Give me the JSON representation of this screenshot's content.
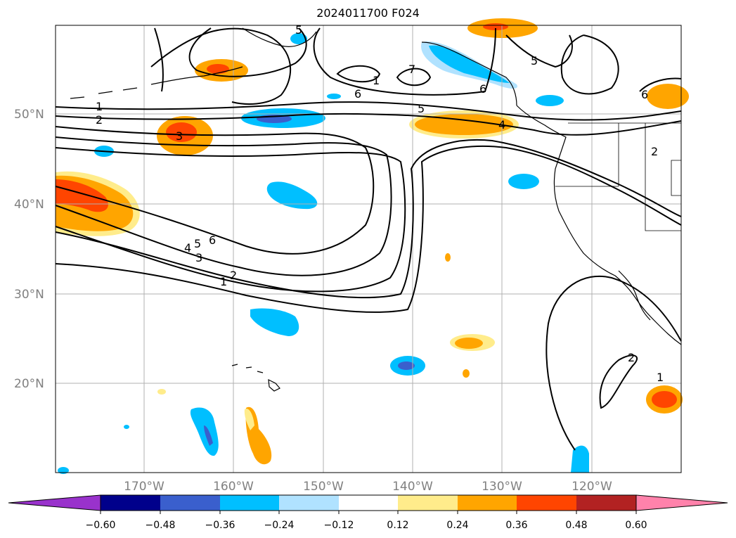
{
  "title": "2024011700 F024",
  "map": {
    "lat_labels": [
      "50°N",
      "40°N",
      "30°N",
      "20°N"
    ],
    "lon_labels": [
      "170°W",
      "160°W",
      "150°W",
      "140°W",
      "130°W",
      "120°W"
    ],
    "contour_labels": [
      "1",
      "2",
      "3",
      "4",
      "5",
      "6",
      "7",
      "1",
      "2",
      "3",
      "4",
      "5",
      "6",
      "1",
      "2",
      "5",
      "6",
      "1",
      "2",
      "6",
      "5"
    ]
  },
  "colorbar": {
    "ticks": [
      "−0.60",
      "−0.48",
      "−0.36",
      "−0.24",
      "−0.12",
      "0.12",
      "0.24",
      "0.36",
      "0.48",
      "0.60"
    ],
    "colors": [
      "#9932cc",
      "#00008b",
      "#3a5fcd",
      "#00bfff",
      "#b0e2ff",
      "#ffffff",
      "#ffec8b",
      "#ffa500",
      "#ff4500",
      "#b22222",
      "#ff82ab"
    ]
  }
}
